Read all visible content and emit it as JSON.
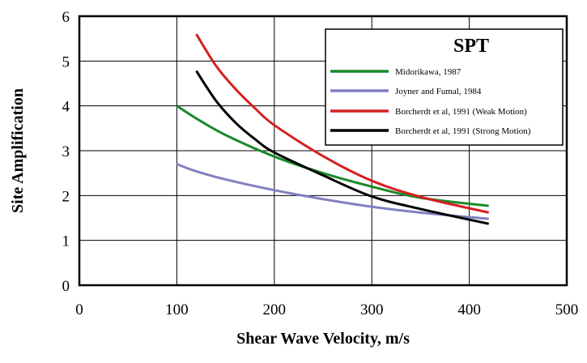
{
  "chart_data": {
    "type": "line",
    "title": "",
    "xlabel": "Shear Wave Velocity, m/s",
    "ylabel": "Site Amplification",
    "xlim": [
      0,
      500
    ],
    "ylim": [
      0,
      6
    ],
    "x_ticks": [
      0,
      100,
      200,
      300,
      400,
      500
    ],
    "y_ticks": [
      0,
      1,
      2,
      3,
      4,
      5,
      6
    ],
    "grid": true,
    "legend": {
      "title": "SPT",
      "placement": "top-right"
    },
    "series": [
      {
        "name": "Midorikawa, 1987",
        "color": "#1a8a2a",
        "x": [
          100,
          120,
          150,
          200,
          250,
          300,
          350,
          420
        ],
        "y": [
          4.0,
          3.72,
          3.35,
          2.87,
          2.5,
          2.2,
          1.95,
          1.77
        ]
      },
      {
        "name": "Joyner and Fumal, 1984",
        "color": "#8080c0",
        "x": [
          100,
          120,
          150,
          200,
          250,
          300,
          350,
          420
        ],
        "y": [
          2.7,
          2.54,
          2.36,
          2.12,
          1.92,
          1.75,
          1.62,
          1.48
        ]
      },
      {
        "name": "Borcherdt et al, 1991 (Weak Motion)",
        "color": "#d42020",
        "x": [
          120,
          140,
          160,
          180,
          200,
          250,
          300,
          350,
          420
        ],
        "y": [
          5.6,
          4.9,
          4.38,
          3.95,
          3.57,
          2.88,
          2.33,
          1.97,
          1.62
        ]
      },
      {
        "name": "Borcherdt et al, 1991 (Strong Motion)",
        "color": "#000000",
        "x": [
          120,
          140,
          160,
          180,
          200,
          250,
          300,
          350,
          420
        ],
        "y": [
          4.78,
          4.12,
          3.63,
          3.26,
          2.96,
          2.45,
          1.98,
          1.7,
          1.37
        ]
      }
    ]
  }
}
